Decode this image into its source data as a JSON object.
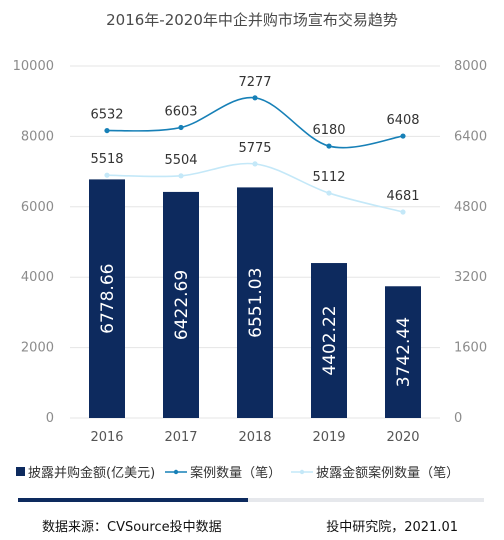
{
  "chart_data": {
    "type": "bar",
    "title": "2016年-2020年中企并购市场宣布交易趋势",
    "categories": [
      "2016",
      "2017",
      "2018",
      "2019",
      "2020"
    ],
    "series": [
      {
        "name": "披露并购金额(亿美元)",
        "kind": "bar",
        "axis": "left",
        "values": [
          6778.66,
          6422.69,
          6551.03,
          4402.22,
          3742.44
        ],
        "labels": [
          "6778.66",
          "6422.69",
          "6551.03",
          "4402.22",
          "3742.44"
        ]
      },
      {
        "name": "案例数量（笔）",
        "kind": "line",
        "axis": "right",
        "values": [
          6532,
          6603,
          7277,
          6180,
          6408
        ],
        "labels": [
          "6532",
          "6603",
          "7277",
          "6180",
          "6408"
        ]
      },
      {
        "name": "披露金额案例数量（笔）",
        "kind": "line",
        "axis": "right",
        "values": [
          5518,
          5504,
          5775,
          5112,
          4681
        ],
        "labels": [
          "5518",
          "5504",
          "5775",
          "5112",
          "4681"
        ]
      }
    ],
    "y_left": {
      "min": 0,
      "max": 10000,
      "ticks": [
        "0",
        "2000",
        "4000",
        "6000",
        "8000",
        "10000"
      ]
    },
    "y_right": {
      "min": 0,
      "max": 8000,
      "ticks": [
        "0",
        "1600",
        "3200",
        "4800",
        "6400",
        "8000"
      ]
    },
    "grid": true,
    "legend_position": "bottom",
    "colors": {
      "bar": "#0d2a5e",
      "line1": "#1780b7",
      "line2": "#c4e8f8",
      "grid": "#e5e5e5",
      "axis_text": "#8c8c8c"
    }
  },
  "footer": {
    "source": "数据来源：CVSource投中数据",
    "credit": "投中研究院，2021.01"
  }
}
